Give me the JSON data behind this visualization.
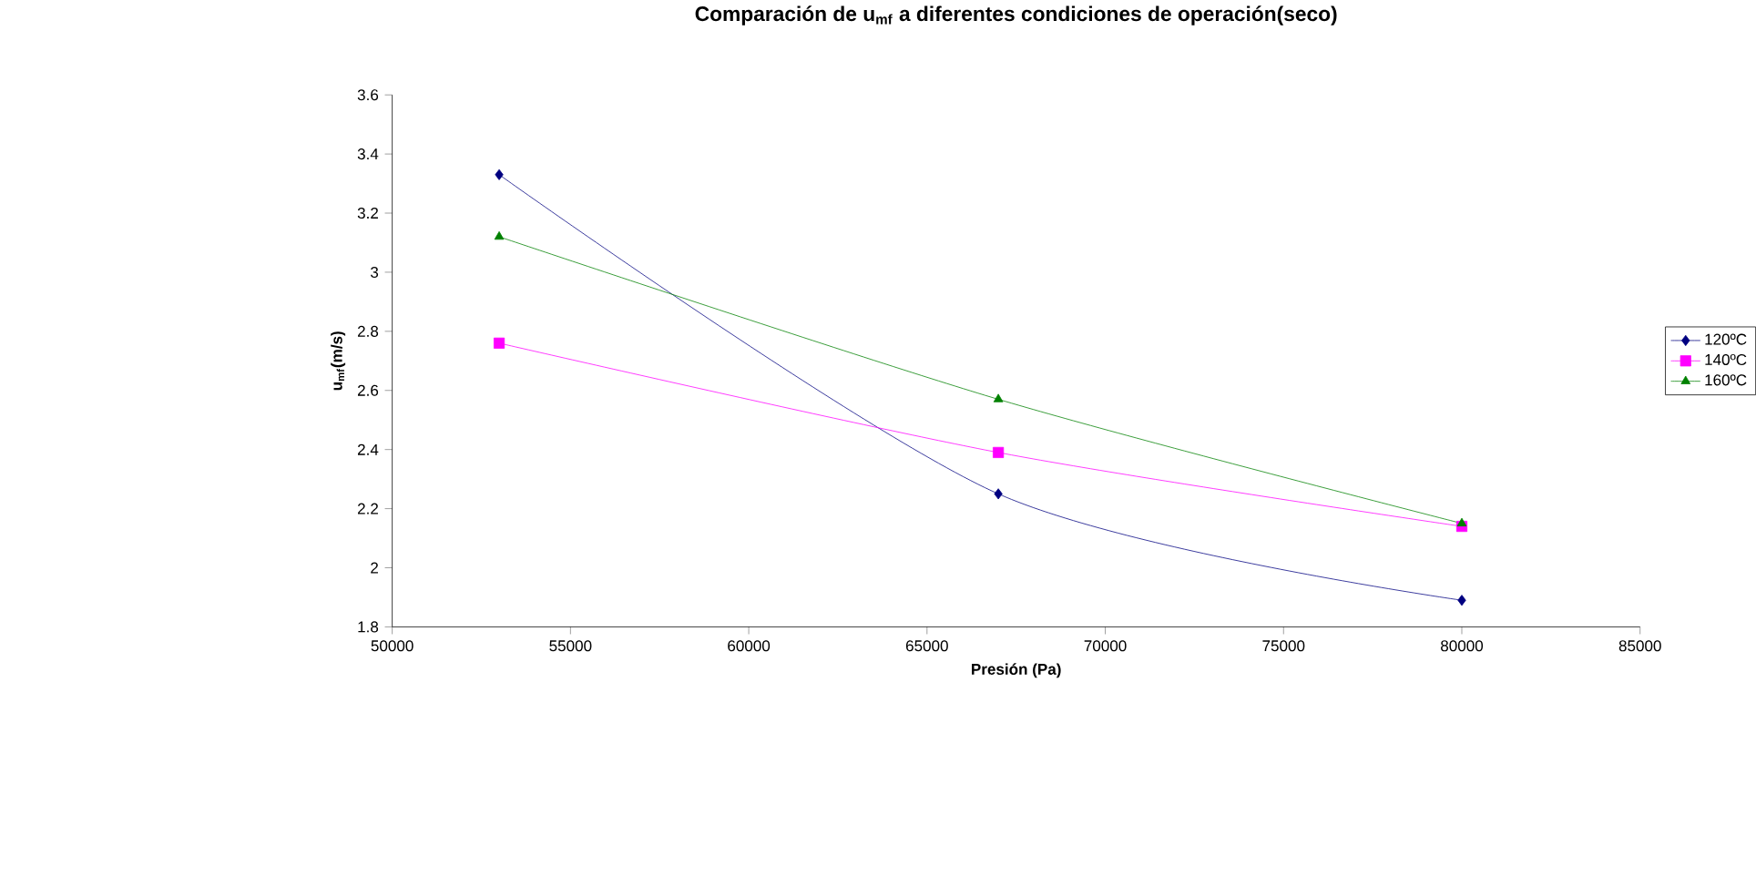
{
  "chart_data": {
    "type": "line",
    "title": "Comparación de u$_{mf}$ a diferentes condiciones de operación(seco)",
    "xlabel": "Presión (Pa)",
    "ylabel": "u$_{mf}$(m/s)",
    "x": [
      53000,
      67000,
      80000
    ],
    "series": [
      {
        "name": "120ºC",
        "color": "#000080",
        "marker": "diamond",
        "values": [
          3.33,
          2.25,
          1.89
        ]
      },
      {
        "name": "140ºC",
        "color": "#ff00ff",
        "marker": "square",
        "values": [
          2.76,
          2.39,
          2.14
        ]
      },
      {
        "name": "160ºC",
        "color": "#008000",
        "marker": "triangle",
        "values": [
          3.12,
          2.57,
          2.15
        ]
      }
    ],
    "xlim": [
      50000,
      85000
    ],
    "xticks": [
      50000,
      55000,
      60000,
      65000,
      70000,
      75000,
      80000,
      85000
    ],
    "ylim": [
      1.8,
      3.6
    ],
    "yticks": [
      1.8,
      2,
      2.2,
      2.4,
      2.6,
      2.8,
      3,
      3.2,
      3.4,
      3.6
    ],
    "grid": false,
    "legend": "right"
  }
}
